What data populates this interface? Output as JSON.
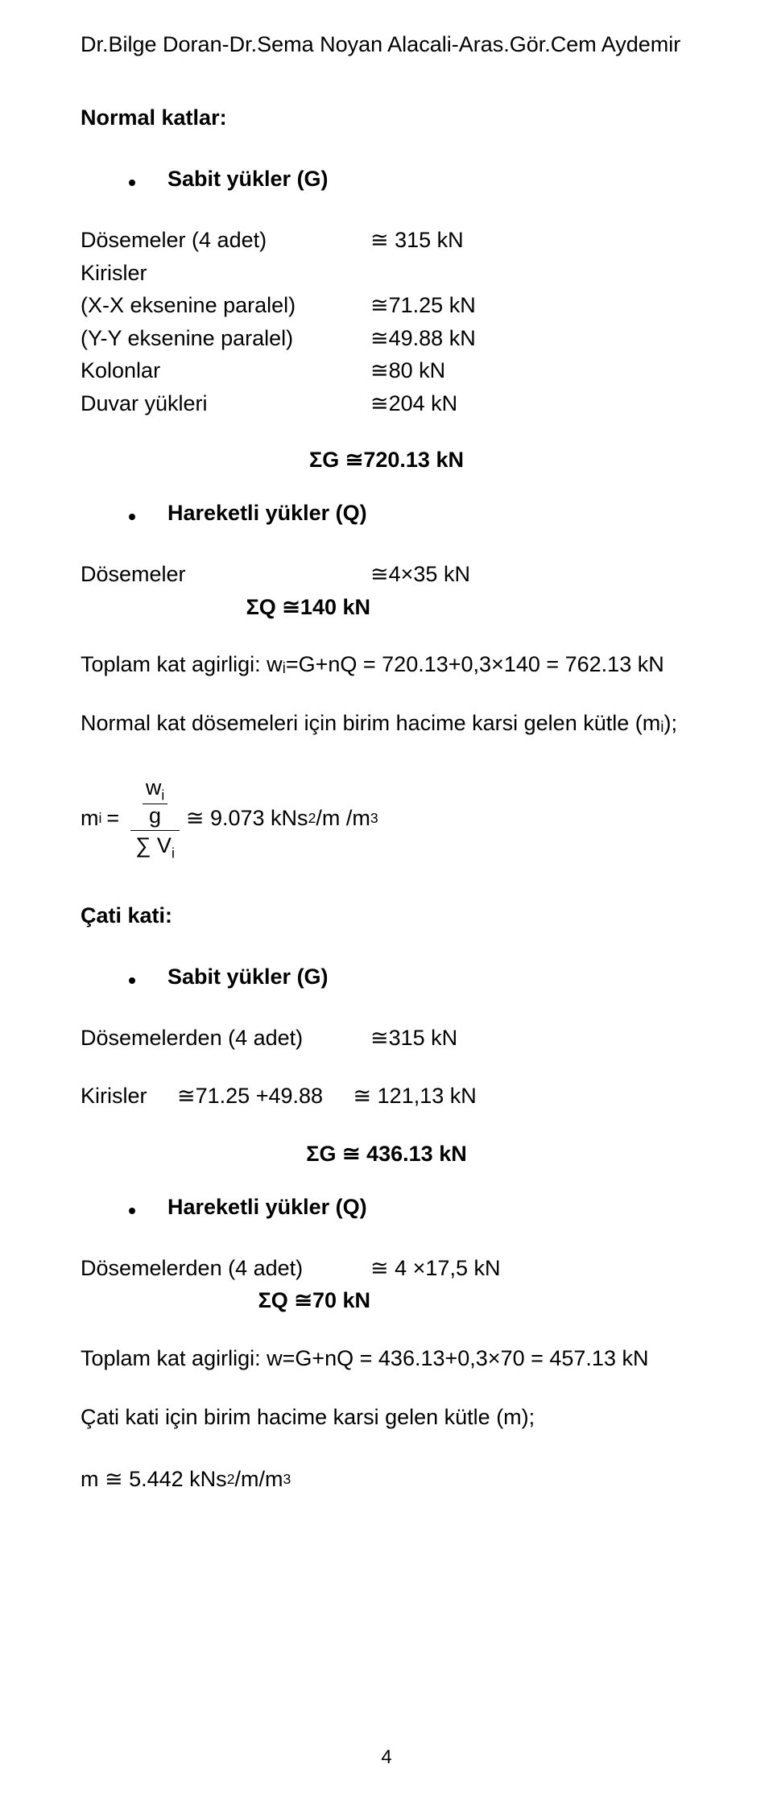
{
  "header": {
    "authors": "Dr.Bilge Doran-Dr.Sema Noyan Alacali-Aras.Gör.Cem Aydemir"
  },
  "normal": {
    "title": "Normal katlar:",
    "sabit_title": "Sabit yükler (G)",
    "rows": [
      {
        "label": "Dösemeler (4 adet)",
        "value": "≅ 315 kN"
      },
      {
        "label": "Kirisler",
        "value": ""
      },
      {
        "label": "(X-X eksenine paralel)",
        "value": "≅71.25 kN"
      },
      {
        "label": "(Y-Y eksenine paralel)",
        "value": "≅49.88 kN"
      },
      {
        "label": "Kolonlar",
        "value": "≅80 kN"
      },
      {
        "label": "Duvar yükleri",
        "value": "≅204 kN"
      }
    ],
    "sigmaG": "ΣG ≅720.13 kN",
    "hareketli_title": "Hareketli yükler (Q)",
    "q_rows": [
      {
        "label": "Dösemeler",
        "value": "≅4×35 kN"
      }
    ],
    "sigmaQ": "ΣQ ≅140 kN",
    "toplam": "Toplam kat agirligi: wᵢ=G+nQ = 720.13+0,3×140 = 762.13 kN",
    "mass_intro": "Normal kat dösemeleri için birim hacime karsi gelen kütle (mᵢ);",
    "formula": {
      "lhs_m": "m",
      "lhs_sub": "i",
      "num_w": "w",
      "num_sub": "i",
      "num_g": "g",
      "den_prefix": "∑ V",
      "den_sub": "i",
      "rhs": "≅ 9.073 kNs",
      "rhs_sup1": "2",
      "rhs_mid": " /m /m",
      "rhs_sup2": "3"
    }
  },
  "cati": {
    "title": "Çati kati:",
    "sabit_title": "Sabit yükler (G)",
    "rows": [
      {
        "label": "Dösemelerden (4 adet)",
        "value": "≅315 kN"
      }
    ],
    "kirisler_line": "Kirisler     ≅71.25 +49.88     ≅ 121,13 kN",
    "sigmaG": "ΣG ≅ 436.13 kN",
    "hareketli_title": "Hareketli yükler (Q)",
    "q_rows": [
      {
        "label": "Dösemelerden (4 adet)",
        "value": "≅ 4 ×17,5 kN"
      }
    ],
    "sigmaQ": "ΣQ ≅70 kN",
    "toplam": "Toplam kat agirligi: w=G+nQ = 436.13+0,3×70 = 457.13 kN",
    "mass_intro": "Çati kati için birim hacime karsi gelen kütle (m);",
    "formula": {
      "lhs": "m ≅ 5.442 kNs",
      "sup1": "2",
      "mid": " /m/m",
      "sup2": "3"
    }
  },
  "pageNumber": "4"
}
